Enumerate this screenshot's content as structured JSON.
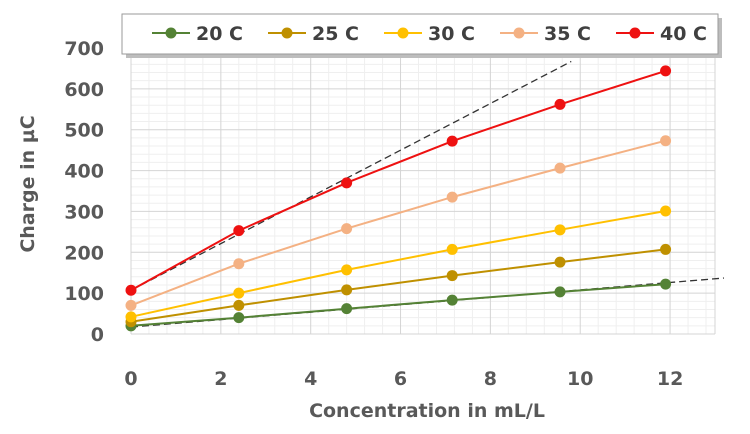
{
  "chart_data": {
    "type": "line",
    "xlabel": "Concentration in mL/L",
    "ylabel": "Charge in µC",
    "xlim": [
      0,
      13
    ],
    "ylim": [
      0,
      700
    ],
    "x_ticks": [
      "0",
      "2",
      "4",
      "6",
      "8",
      "10",
      "12"
    ],
    "y_ticks": [
      "0",
      "100",
      "200",
      "300",
      "400",
      "500",
      "600",
      "700"
    ],
    "grid": true,
    "legend_position": "top",
    "x": [
      0,
      2.4,
      4.8,
      7.15,
      9.55,
      11.9
    ],
    "series": [
      {
        "name": "20 C",
        "color": "#548235",
        "values": [
          20,
          40,
          62,
          83,
          103,
          122
        ]
      },
      {
        "name": "25 C",
        "color": "#BF9000",
        "values": [
          30,
          70,
          108,
          143,
          176,
          207
        ]
      },
      {
        "name": "30 C",
        "color": "#FFC000",
        "values": [
          42,
          100,
          157,
          207,
          255,
          301
        ]
      },
      {
        "name": "35 C",
        "color": "#F4B183",
        "values": [
          70,
          172,
          258,
          335,
          406,
          473
        ]
      },
      {
        "name": "40 C",
        "color": "#EE1111",
        "values": [
          107,
          253,
          370,
          472,
          562,
          644
        ]
      }
    ],
    "trendlines": [
      {
        "style": "dashed",
        "color": "#333333",
        "x": [
          0,
          9.8
        ],
        "y": [
          107,
          667
        ]
      },
      {
        "style": "dashed",
        "color": "#333333",
        "x": [
          0,
          13.2
        ],
        "y": [
          17,
          137
        ]
      }
    ]
  }
}
